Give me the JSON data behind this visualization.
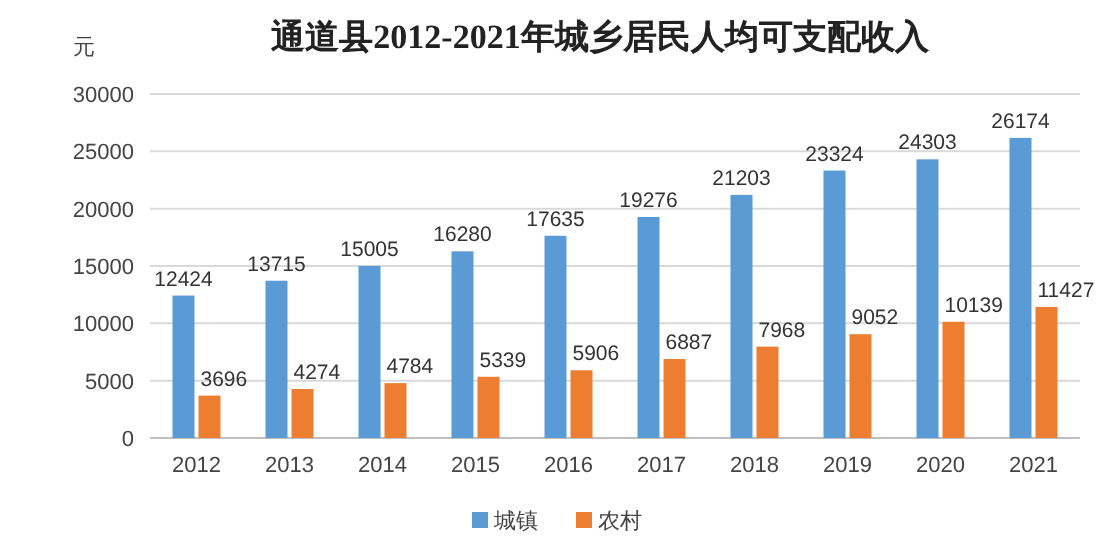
{
  "chart_data": {
    "type": "bar",
    "title": "通道县2012-2021年城乡居民人均可支配收入",
    "ylabel": "元",
    "categories": [
      "2012",
      "2013",
      "2014",
      "2015",
      "2016",
      "2017",
      "2018",
      "2019",
      "2020",
      "2021"
    ],
    "series": [
      {
        "name": "城镇",
        "color": "#5b9bd5",
        "values": [
          12424,
          13715,
          15005,
          16280,
          17635,
          19276,
          21203,
          23324,
          24303,
          26174
        ]
      },
      {
        "name": "农村",
        "color": "#ed7d31",
        "values": [
          3696,
          4274,
          4784,
          5339,
          5906,
          6887,
          7968,
          9052,
          10139,
          11427
        ]
      }
    ],
    "ylim": [
      0,
      30000
    ],
    "yticks": [
      0,
      5000,
      10000,
      15000,
      20000,
      25000,
      30000
    ],
    "grid": "y",
    "legend": "bottom",
    "data_labels": true
  }
}
